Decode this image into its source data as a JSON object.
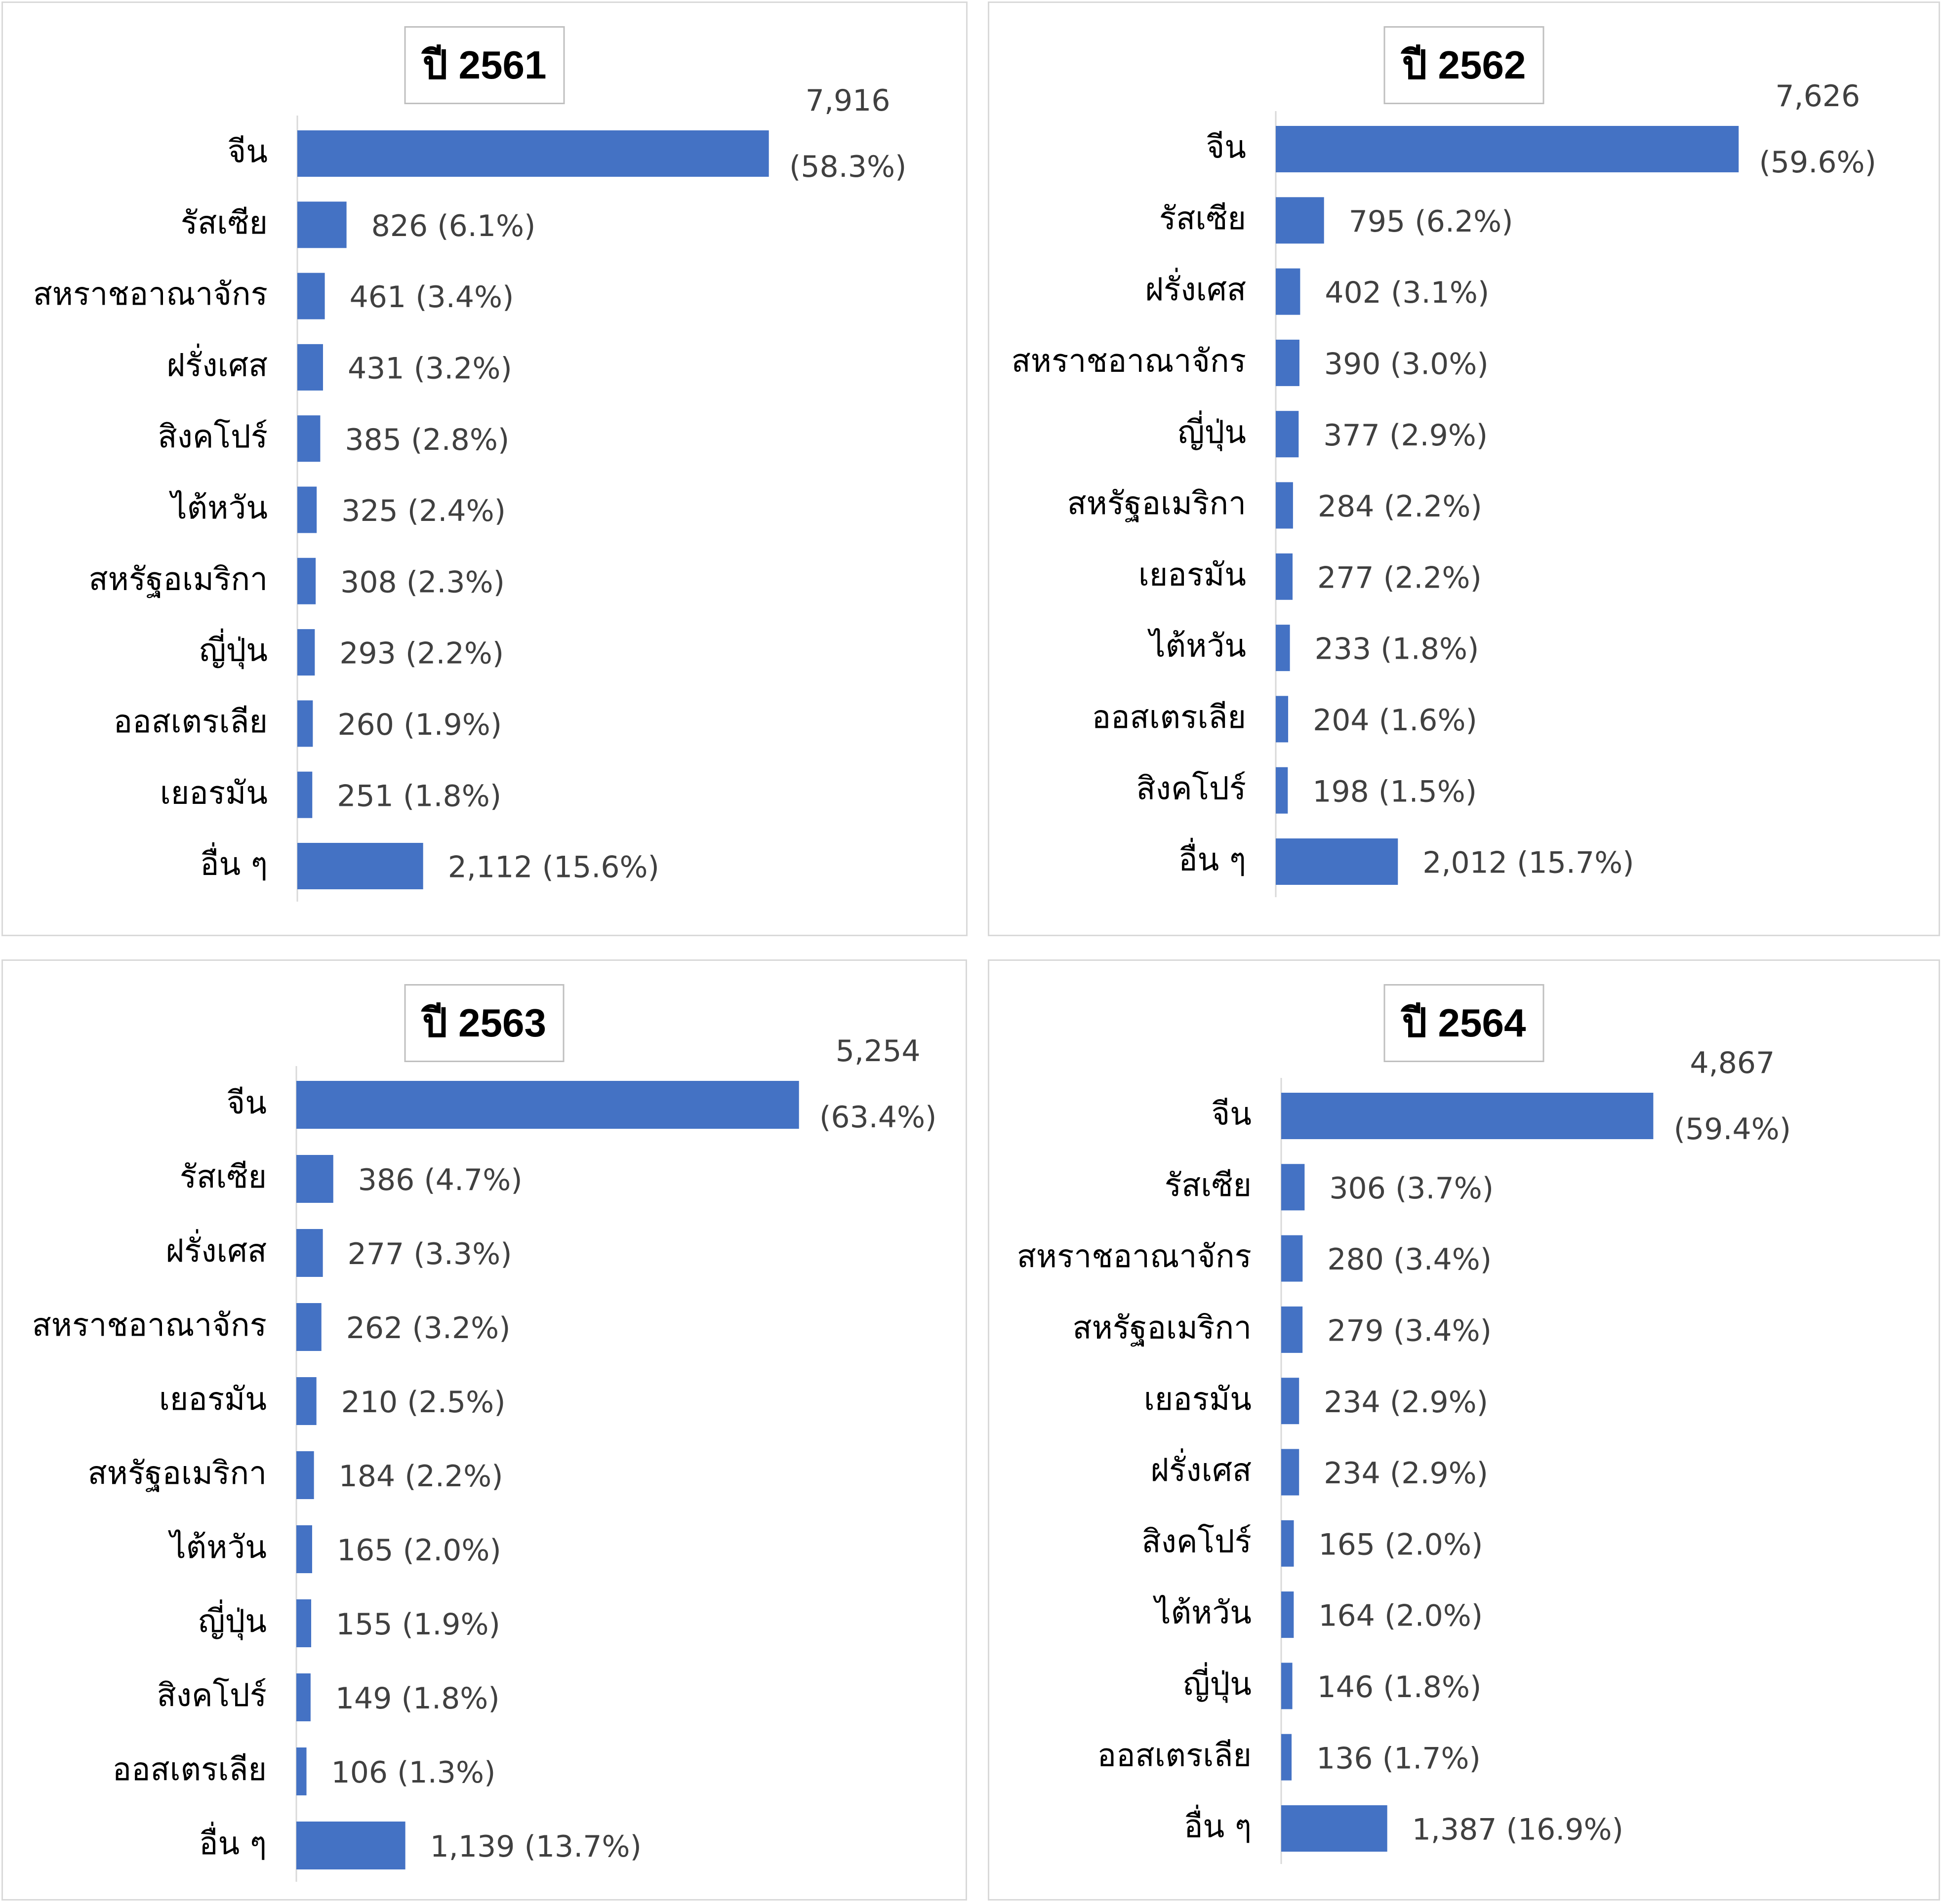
{
  "colors": {
    "bar": "#4472c4",
    "axis": "#d9d9d9",
    "label": "#404040",
    "category": "#000000",
    "panel_border": "#d9d9d9",
    "title_border": "#bfbfbf"
  },
  "chart_data": [
    {
      "type": "bar",
      "orientation": "horizontal",
      "title": "ปี 2561",
      "categories": [
        "จีน",
        "รัสเซีย",
        "สหราชอาณาจักร",
        "ฝรั่งเศส",
        "สิงคโปร์",
        "ไต้หวัน",
        "สหรัฐอเมริกา",
        "ญี่ปุ่น",
        "ออสเตรเลีย",
        "เยอรมัน",
        "อื่น ๆ"
      ],
      "values": [
        7916,
        826,
        461,
        431,
        385,
        325,
        308,
        293,
        260,
        251,
        2112
      ],
      "data_labels": [
        "7,916 (58.3%)",
        "826 (6.1%)",
        "461 (3.4%)",
        "431 (3.2%)",
        "385 (2.8%)",
        "325 (2.4%)",
        "308 (2.3%)",
        "293 (2.2%)",
        "260 (1.9%)",
        "251 (1.8%)",
        "2,112 (15.6%)"
      ],
      "grid": false,
      "legend": "none"
    },
    {
      "type": "bar",
      "orientation": "horizontal",
      "title": "ปี 2562",
      "categories": [
        "จีน",
        "รัสเซีย",
        "ฝรั่งเศส",
        "สหราชอาณาจักร",
        "ญี่ปุ่น",
        "สหรัฐอเมริกา",
        "เยอรมัน",
        "ไต้หวัน",
        "ออสเตรเลีย",
        "สิงคโปร์",
        "อื่น ๆ"
      ],
      "values": [
        7626,
        795,
        402,
        390,
        377,
        284,
        277,
        233,
        204,
        198,
        2012
      ],
      "data_labels": [
        "7,626 (59.6%)",
        "795 (6.2%)",
        "402 (3.1%)",
        "390 (3.0%)",
        "377 (2.9%)",
        "284 (2.2%)",
        "277 (2.2%)",
        "233 (1.8%)",
        "204 (1.6%)",
        "198 (1.5%)",
        "2,012 (15.7%)"
      ],
      "grid": false,
      "legend": "none"
    },
    {
      "type": "bar",
      "orientation": "horizontal",
      "title": "ปี 2563",
      "categories": [
        "จีน",
        "รัสเซีย",
        "ฝรั่งเศส",
        "สหราชอาณาจักร",
        "เยอรมัน",
        "สหรัฐอเมริกา",
        "ไต้หวัน",
        "ญี่ปุ่น",
        "สิงคโปร์",
        "ออสเตรเลีย",
        "อื่น ๆ"
      ],
      "values": [
        5254,
        386,
        277,
        262,
        210,
        184,
        165,
        155,
        149,
        106,
        1139
      ],
      "data_labels": [
        "5,254 (63.4%)",
        "386 (4.7%)",
        "277 (3.3%)",
        "262 (3.2%)",
        "210 (2.5%)",
        "184 (2.2%)",
        "165 (2.0%)",
        "155 (1.9%)",
        "149 (1.8%)",
        "106 (1.3%)",
        "1,139 (13.7%)"
      ],
      "grid": false,
      "legend": "none"
    },
    {
      "type": "bar",
      "orientation": "horizontal",
      "title": "ปี 2564",
      "categories": [
        "จีน",
        "รัสเซีย",
        "สหราชอาณาจักร",
        "สหรัฐอเมริกา",
        "เยอรมัน",
        "ฝรั่งเศส",
        "สิงคโปร์",
        "ไต้หวัน",
        "ญี่ปุ่น",
        "ออสเตรเลีย",
        "อื่น ๆ"
      ],
      "values": [
        4867,
        306,
        280,
        279,
        234,
        234,
        165,
        164,
        146,
        136,
        1387
      ],
      "data_labels": [
        "4,867 (59.4%)",
        "306 (3.7%)",
        "280 (3.4%)",
        "279 (3.4%)",
        "234 (2.9%)",
        "234 (2.9%)",
        "165 (2.0%)",
        "164 (2.0%)",
        "146 (1.8%)",
        "136 (1.7%)",
        "1,387 (16.9%)"
      ],
      "grid": false,
      "legend": "none"
    }
  ]
}
